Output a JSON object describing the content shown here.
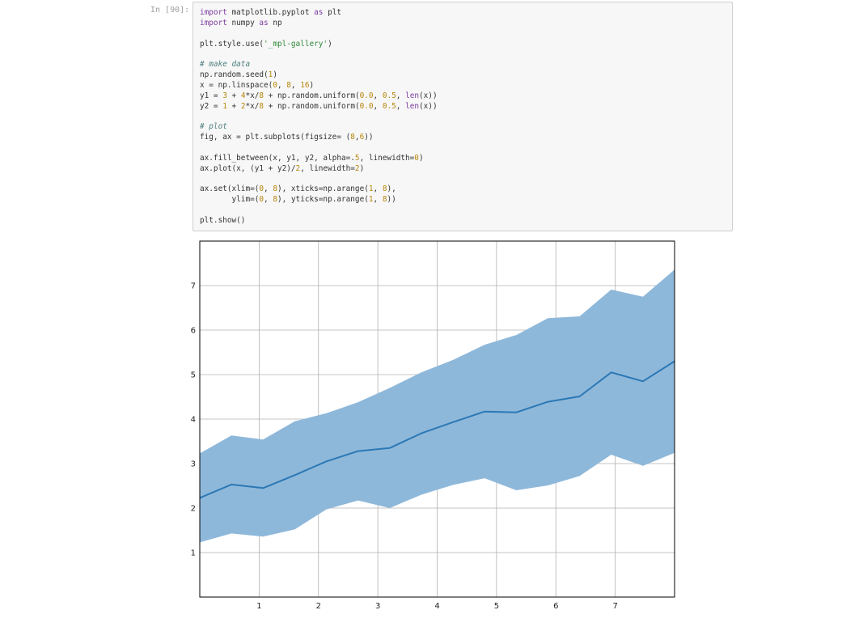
{
  "cell": {
    "prompt": "In [90]:",
    "code_lines": [
      [
        {
          "t": "import",
          "c": "kw"
        },
        {
          "t": " matplotlib.pyplot "
        },
        {
          "t": "as",
          "c": "kw"
        },
        {
          "t": " plt"
        }
      ],
      [
        {
          "t": "import",
          "c": "kw"
        },
        {
          "t": " numpy "
        },
        {
          "t": "as",
          "c": "kw"
        },
        {
          "t": " np"
        }
      ],
      [],
      [
        {
          "t": "plt.style.use("
        },
        {
          "t": "'_mpl-gallery'",
          "c": "str"
        },
        {
          "t": ")"
        }
      ],
      [],
      [
        {
          "t": "# make data",
          "c": "cm"
        }
      ],
      [
        {
          "t": "np.random.seed("
        },
        {
          "t": "1",
          "c": "num"
        },
        {
          "t": ")"
        }
      ],
      [
        {
          "t": "x = np.linspace("
        },
        {
          "t": "0",
          "c": "num"
        },
        {
          "t": ", "
        },
        {
          "t": "8",
          "c": "num"
        },
        {
          "t": ", "
        },
        {
          "t": "16",
          "c": "num"
        },
        {
          "t": ")"
        }
      ],
      [
        {
          "t": "y1 = "
        },
        {
          "t": "3",
          "c": "num"
        },
        {
          "t": " + "
        },
        {
          "t": "4",
          "c": "num"
        },
        {
          "t": "*x/"
        },
        {
          "t": "8",
          "c": "num"
        },
        {
          "t": " + np.random.uniform("
        },
        {
          "t": "0.0",
          "c": "num"
        },
        {
          "t": ", "
        },
        {
          "t": "0.5",
          "c": "num"
        },
        {
          "t": ", "
        },
        {
          "t": "len",
          "c": "kw"
        },
        {
          "t": "(x))"
        }
      ],
      [
        {
          "t": "y2 = "
        },
        {
          "t": "1",
          "c": "num"
        },
        {
          "t": " + "
        },
        {
          "t": "2",
          "c": "num"
        },
        {
          "t": "*x/"
        },
        {
          "t": "8",
          "c": "num"
        },
        {
          "t": " + np.random.uniform("
        },
        {
          "t": "0.0",
          "c": "num"
        },
        {
          "t": ", "
        },
        {
          "t": "0.5",
          "c": "num"
        },
        {
          "t": ", "
        },
        {
          "t": "len",
          "c": "kw"
        },
        {
          "t": "(x))"
        }
      ],
      [],
      [
        {
          "t": "# plot",
          "c": "cm"
        }
      ],
      [
        {
          "t": "fig, ax = plt.subplots(figsize= ("
        },
        {
          "t": "8",
          "c": "num"
        },
        {
          "t": ","
        },
        {
          "t": "6",
          "c": "num"
        },
        {
          "t": "))"
        }
      ],
      [],
      [
        {
          "t": "ax.fill_between(x, y1, y2, alpha=."
        },
        {
          "t": "5",
          "c": "num"
        },
        {
          "t": ", linewidth="
        },
        {
          "t": "0",
          "c": "num"
        },
        {
          "t": ")"
        }
      ],
      [
        {
          "t": "ax.plot(x, (y1 + y2)/"
        },
        {
          "t": "2",
          "c": "num"
        },
        {
          "t": ", linewidth="
        },
        {
          "t": "2",
          "c": "num"
        },
        {
          "t": ")"
        }
      ],
      [],
      [
        {
          "t": "ax.set(xlim=("
        },
        {
          "t": "0",
          "c": "num"
        },
        {
          "t": ", "
        },
        {
          "t": "8",
          "c": "num"
        },
        {
          "t": "), xticks=np.arange("
        },
        {
          "t": "1",
          "c": "num"
        },
        {
          "t": ", "
        },
        {
          "t": "8",
          "c": "num"
        },
        {
          "t": "),"
        }
      ],
      [
        {
          "t": "       ylim=("
        },
        {
          "t": "0",
          "c": "num"
        },
        {
          "t": ", "
        },
        {
          "t": "8",
          "c": "num"
        },
        {
          "t": "), yticks=np.arange("
        },
        {
          "t": "1",
          "c": "num"
        },
        {
          "t": ", "
        },
        {
          "t": "8",
          "c": "num"
        },
        {
          "t": "))"
        }
      ],
      [],
      [
        {
          "t": "plt.show()"
        }
      ]
    ]
  },
  "colors": {
    "fill": "#8eb8da",
    "line": "#2b78b5",
    "grid": "#b0b0b0",
    "axes": "#000000"
  },
  "chart_data": {
    "type": "area",
    "xlim": [
      0,
      8
    ],
    "ylim": [
      0,
      8
    ],
    "grid": true,
    "xticks": [
      1,
      2,
      3,
      4,
      5,
      6,
      7
    ],
    "yticks": [
      1,
      2,
      3,
      4,
      5,
      6,
      7
    ],
    "x": [
      0,
      0.533,
      1.067,
      1.6,
      2.133,
      2.667,
      3.2,
      3.733,
      4.267,
      4.8,
      5.333,
      5.867,
      6.4,
      6.933,
      7.467,
      8.0
    ],
    "series": [
      {
        "role": "upper",
        "values": [
          3.23,
          3.63,
          3.54,
          3.95,
          4.13,
          4.38,
          4.7,
          5.05,
          5.33,
          5.67,
          5.89,
          6.27,
          6.31,
          6.91,
          6.75,
          7.36
        ]
      },
      {
        "role": "lower",
        "values": [
          1.23,
          1.43,
          1.36,
          1.52,
          1.97,
          2.17,
          2.0,
          2.3,
          2.52,
          2.67,
          2.4,
          2.51,
          2.72,
          3.2,
          2.95,
          3.24
        ]
      },
      {
        "role": "mean",
        "values": [
          2.23,
          2.53,
          2.45,
          2.74,
          3.05,
          3.28,
          3.35,
          3.68,
          3.93,
          4.17,
          4.15,
          4.39,
          4.51,
          5.05,
          4.85,
          5.3
        ]
      }
    ]
  }
}
